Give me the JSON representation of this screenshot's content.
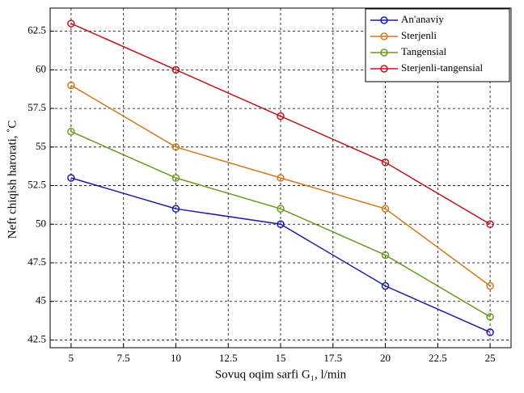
{
  "chart_data": {
    "type": "line",
    "x_label": "Sovuq oqim sarfi G₁, l/min",
    "y_label": "Neft chiqish harorati, ˚C",
    "x": [
      5,
      10,
      15,
      20,
      25
    ],
    "series": [
      {
        "name": "An'anaviy",
        "color": "#1c1caa",
        "values": [
          53,
          51,
          50,
          46,
          43
        ]
      },
      {
        "name": "Sterjenli",
        "color": "#d4791c",
        "values": [
          59,
          55,
          53,
          51,
          46
        ]
      },
      {
        "name": "Tangensial",
        "color": "#6a9a1f",
        "values": [
          56,
          53,
          51,
          48,
          44
        ]
      },
      {
        "name": "Sterjenli-tangensial",
        "color": "#c0141c",
        "values": [
          63,
          60,
          57,
          54,
          50
        ]
      }
    ],
    "xlim": [
      4,
      26
    ],
    "xticks": [
      5,
      7.5,
      10,
      12.5,
      15,
      17.5,
      20,
      22.5,
      25
    ],
    "ylim": [
      42,
      64
    ],
    "yticks": [
      42.5,
      45,
      47.5,
      50,
      52.5,
      55,
      57.5,
      60,
      62.5
    ],
    "grid": true,
    "legend": "top-right"
  }
}
